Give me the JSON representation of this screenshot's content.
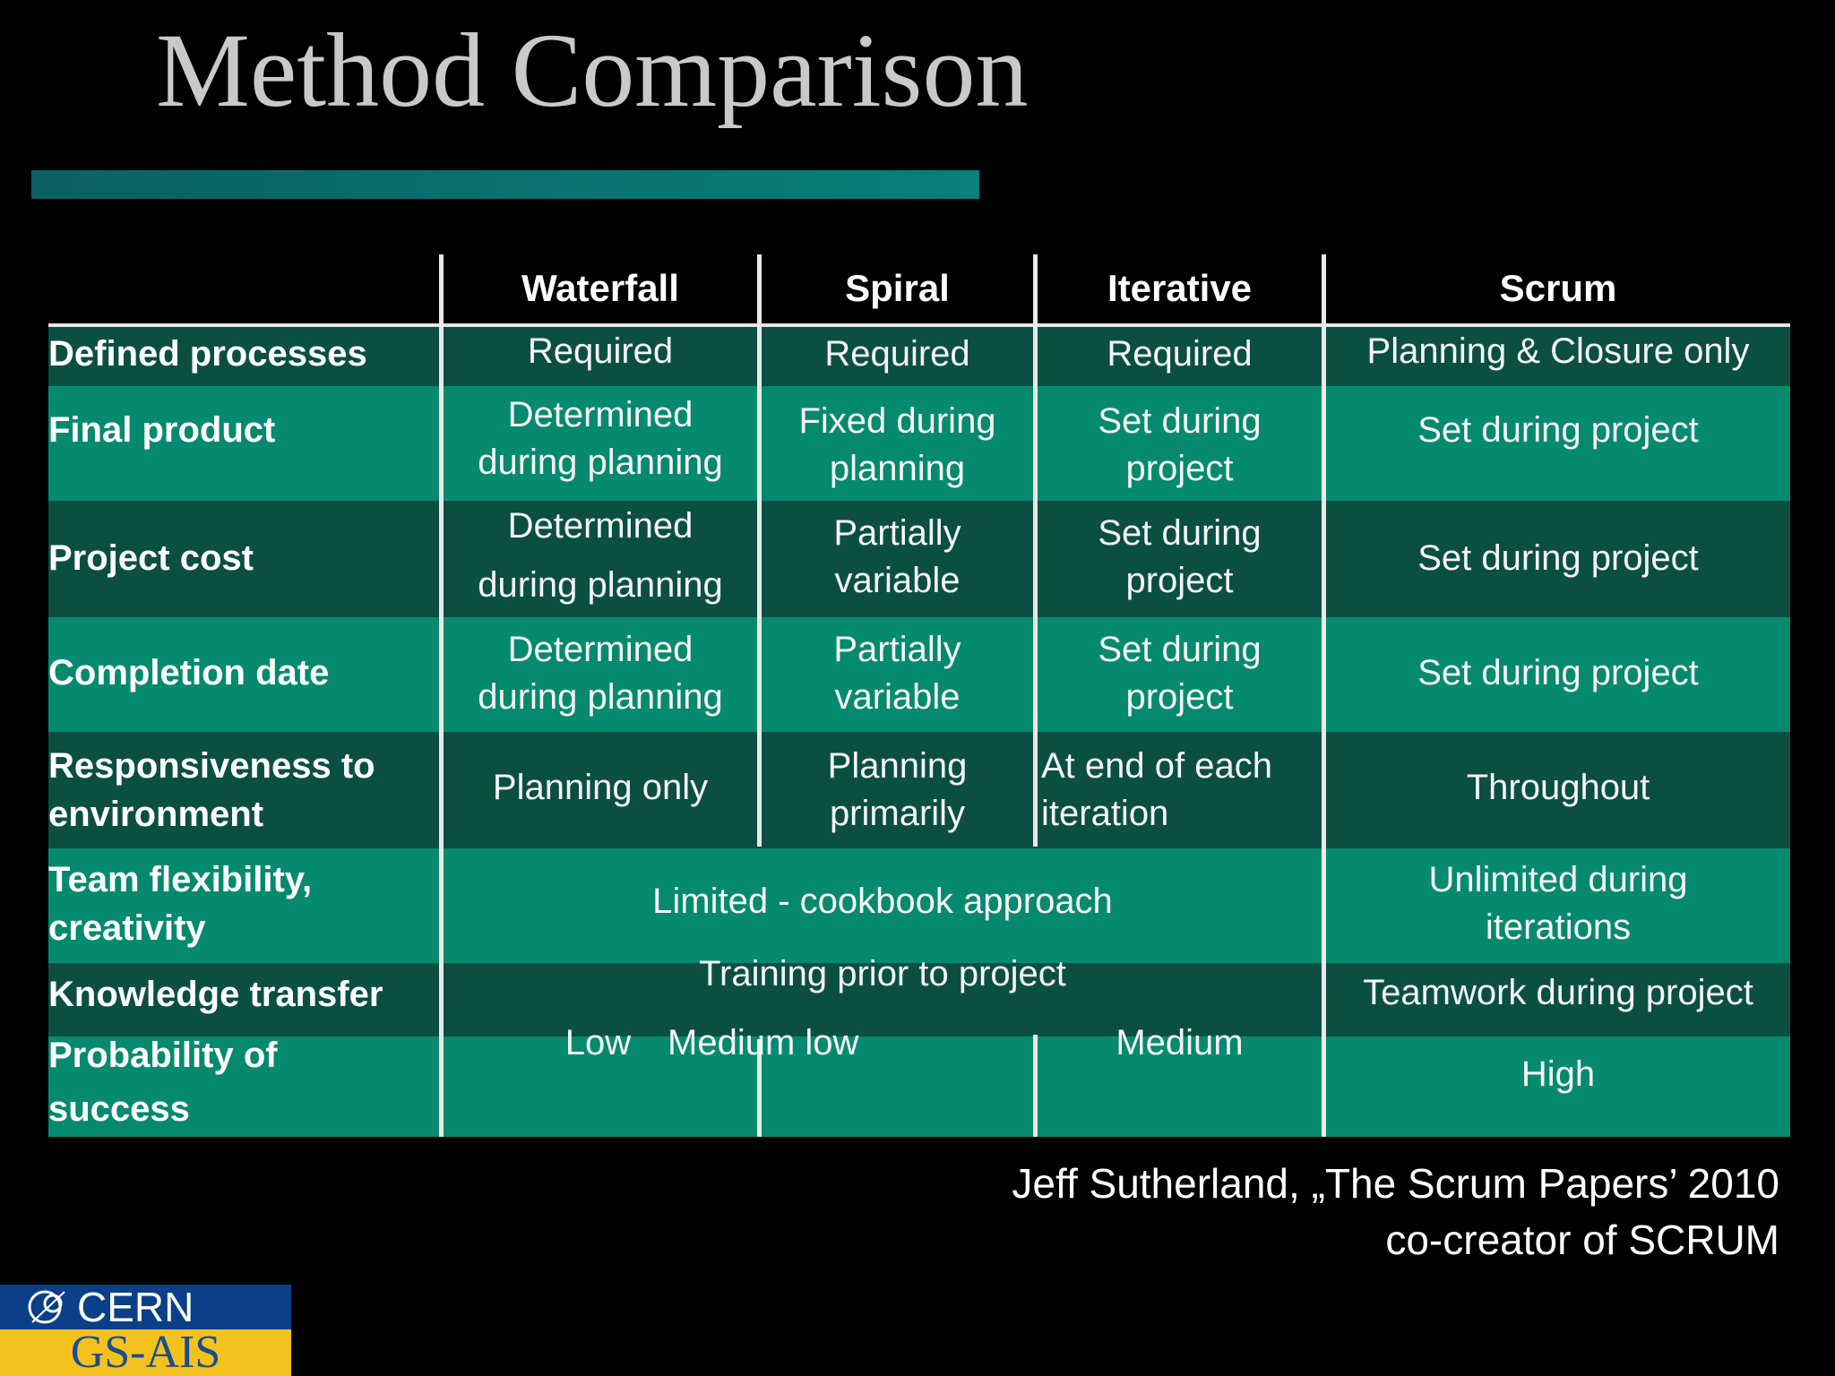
{
  "title": "Method Comparison",
  "colors": {
    "title": "#c9c9c9",
    "accent_bar": "#08807d",
    "row_dark": "#0b4f43",
    "row_light": "#058a6f",
    "logo_blue": "#0b3f87",
    "logo_yellow": "#f4c21f"
  },
  "table": {
    "columns": [
      "Waterfall",
      "Spiral",
      "Iterative",
      "Scrum"
    ],
    "rows": [
      {
        "label": "Defined processes",
        "cells": [
          "Required",
          "Required",
          "Required",
          "Planning & Closure only"
        ]
      },
      {
        "label": "Final product",
        "cells": [
          "Determined\nduring planning",
          "Fixed during\nplanning",
          "Set during\nproject",
          "Set during project"
        ]
      },
      {
        "label": "Project cost",
        "cells": [
          "Determined\nduring planning",
          "Partially\nvariable",
          "Set during\nproject",
          "Set during project"
        ]
      },
      {
        "label": "Completion date",
        "cells": [
          "Determined\nduring planning",
          "Partially\nvariable",
          "Set during\nproject",
          "Set during project"
        ]
      },
      {
        "label": "Responsiveness to\nenvironment",
        "cells": [
          "Planning only",
          "Planning\nprimarily",
          "At end of each\niteration",
          "Throughout"
        ]
      },
      {
        "label": "Team flexibility,\ncreativity",
        "merged": "Limited - cookbook approach",
        "scrum": "Unlimited during\niterations"
      },
      {
        "label": "Knowledge transfer",
        "merged": "Training prior to project",
        "scrum": "Teamwork during project"
      },
      {
        "label": "Probability of\nsuccess",
        "cells": [
          "Low",
          "Medium low",
          "Medium"
        ],
        "scrum": "High"
      }
    ]
  },
  "credit": "Jeff Sutherland, „The Scrum Papers’ 2010\nco-creator of SCRUM",
  "logo": {
    "top": "CERN",
    "bottom": "GS-AIS",
    "icon": "cern-logo-icon"
  }
}
